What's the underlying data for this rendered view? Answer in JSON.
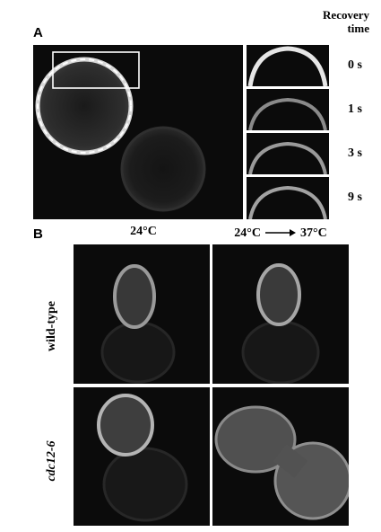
{
  "panel_a": {
    "label": "A",
    "recovery_header": {
      "line1": "Recovery",
      "line2": "time"
    },
    "times": [
      "0 s",
      "1 s",
      "3 s",
      "9 s"
    ]
  },
  "panel_b": {
    "label": "B",
    "columns": [
      "24°C",
      "24°C",
      "37°C"
    ],
    "rows": [
      "wild-type",
      "cdc12-6"
    ]
  }
}
